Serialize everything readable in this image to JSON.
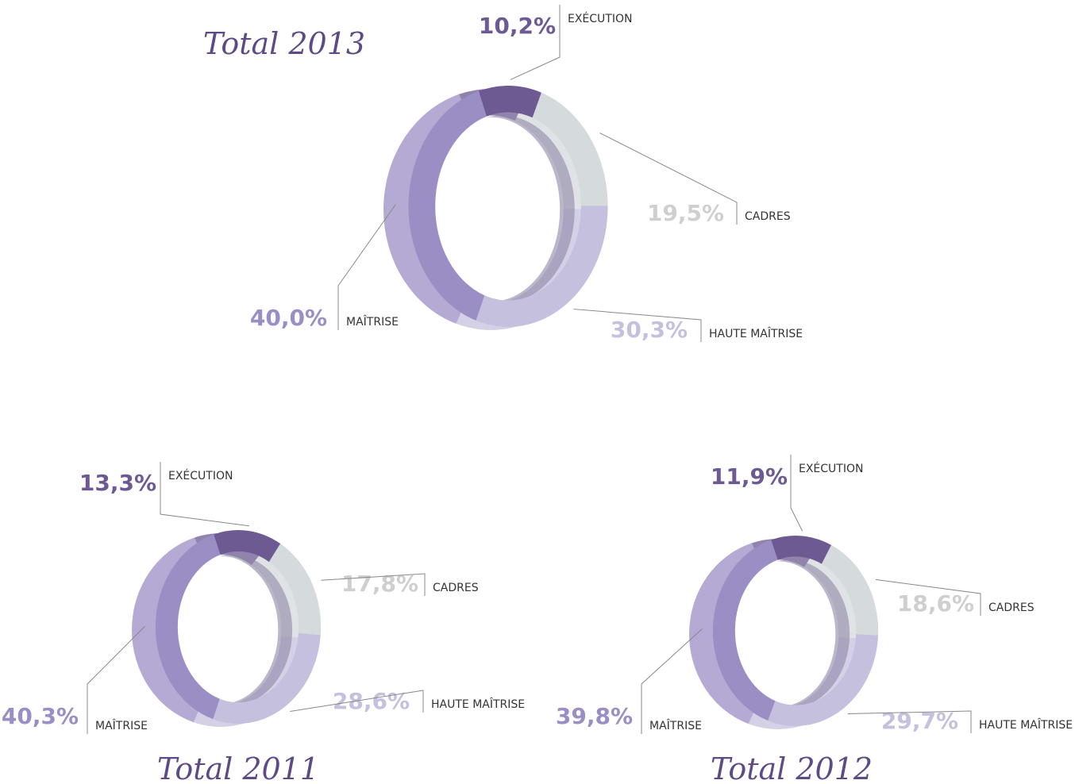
{
  "chart_data": [
    {
      "type": "pie",
      "title": "Total 2013",
      "categories": [
        "EXÉCUTION",
        "CADRES",
        "HAUTE MAÎTRISE",
        "MAÎTRISE"
      ],
      "values": [
        10.2,
        19.5,
        30.3,
        40.0
      ],
      "value_labels": [
        "10,2%",
        "19,5%",
        "30,3%",
        "40,0%"
      ],
      "colors": [
        "#6e5a92",
        "#d5dadd",
        "#c5c0de",
        "#9b8ec4"
      ]
    },
    {
      "type": "pie",
      "title": "Total 2011",
      "categories": [
        "EXÉCUTION",
        "CADRES",
        "HAUTE MAÎTRISE",
        "MAÎTRISE"
      ],
      "values": [
        13.3,
        17.8,
        28.6,
        40.3
      ],
      "value_labels": [
        "13,3%",
        "17,8%",
        "28,6%",
        "40,3%"
      ],
      "colors": [
        "#6e5a92",
        "#d5dadd",
        "#c5c0de",
        "#9b8ec4"
      ]
    },
    {
      "type": "pie",
      "title": "Total 2012",
      "categories": [
        "EXÉCUTION",
        "CADRES",
        "HAUTE MAÎTRISE",
        "MAÎTRISE"
      ],
      "values": [
        11.9,
        18.6,
        29.7,
        39.8
      ],
      "value_labels": [
        "11,9%",
        "18,6%",
        "29,7%",
        "39,8%"
      ],
      "colors": [
        "#6e5a92",
        "#d5dadd",
        "#c5c0de",
        "#9b8ec4"
      ]
    }
  ]
}
